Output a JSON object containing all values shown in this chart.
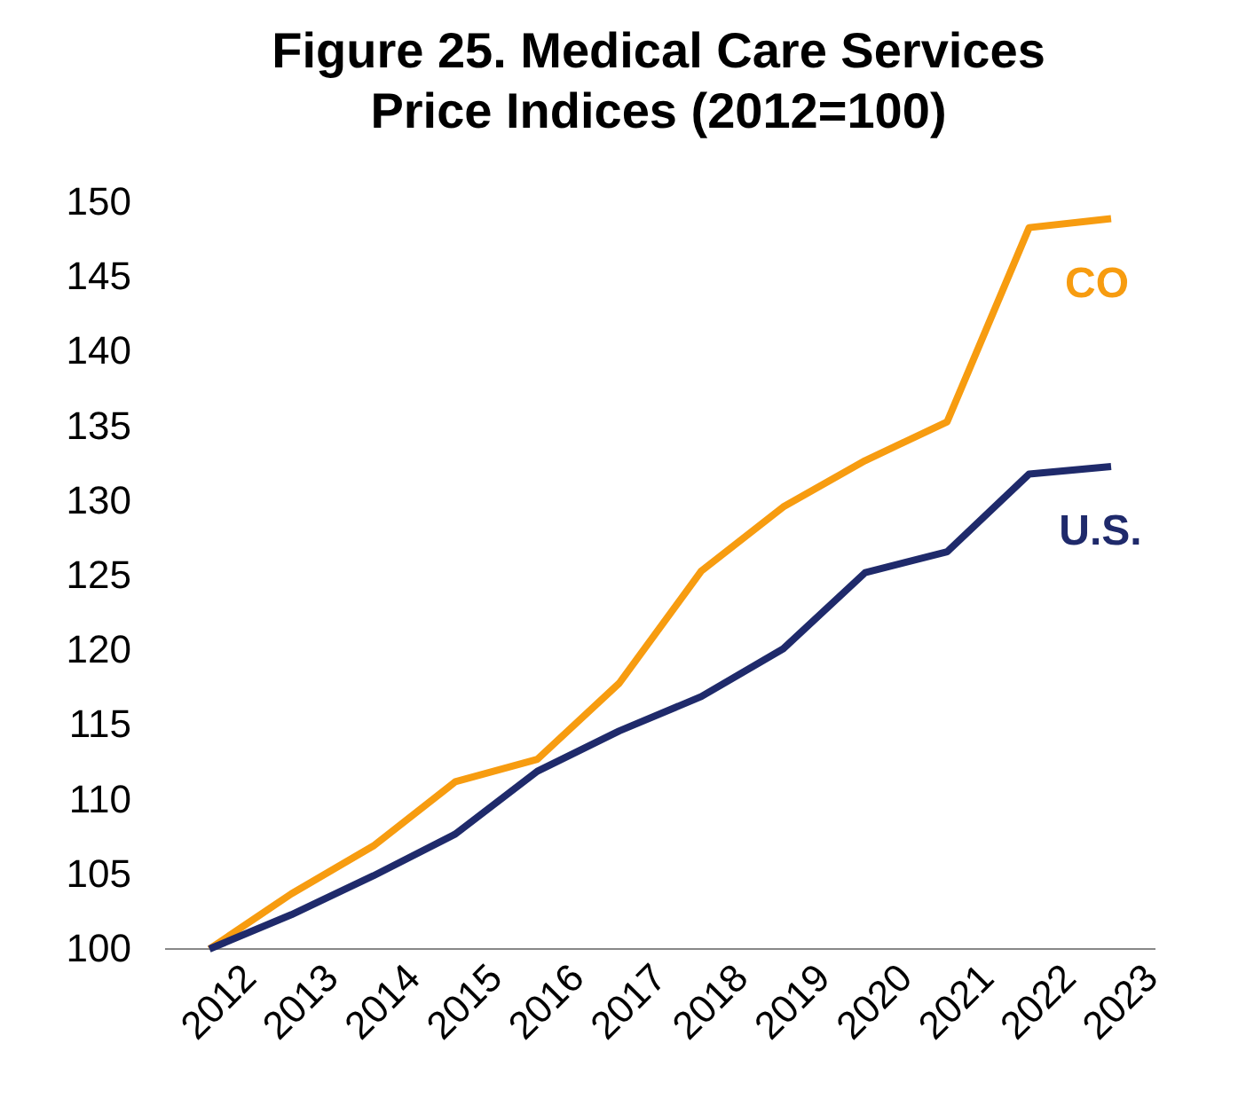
{
  "chart_data": {
    "type": "line",
    "title": "Figure 25. Medical Care Services Price Indices (2012=100)",
    "categories": [
      "2012",
      "2013",
      "2014",
      "2015",
      "2016",
      "2017",
      "2018",
      "2019",
      "2020",
      "2021",
      "2022",
      "2023"
    ],
    "series": [
      {
        "name": "CO",
        "color": "#f79c10",
        "values": [
          100,
          103.7,
          106.9,
          111.2,
          112.7,
          117.8,
          125.3,
          129.6,
          132.7,
          135.3,
          148.3,
          148.9
        ]
      },
      {
        "name": "U.S.",
        "color": "#1f2a6b",
        "values": [
          100,
          102.3,
          104.9,
          107.7,
          111.9,
          114.6,
          116.9,
          120.1,
          125.2,
          126.6,
          131.8,
          132.3
        ]
      }
    ],
    "ylim": [
      100,
      150
    ],
    "yticks": [
      100,
      105,
      110,
      115,
      120,
      125,
      130,
      135,
      140,
      145,
      150
    ],
    "grid": false,
    "legend": false,
    "marker": "none",
    "line_style": "solid"
  }
}
